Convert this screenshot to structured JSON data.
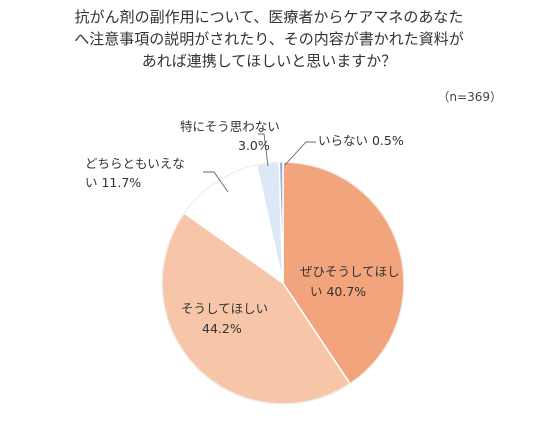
{
  "title_lines": [
    "抗がん剤の副作用について、医療者からケアマネのあなた",
    "へ注意事項の説明がされたり、その内容が書かれた資料が",
    "あれば連携してほしいと思いますか？"
  ],
  "sample_size": "（n=369）",
  "chart_data": {
    "type": "pie",
    "title": "抗がん剤の副作用について、医療者からケアマネのあなたへ注意事項の説明がされたり、その内容が書かれた資料があれば連携してほしいと思いますか？",
    "n": 369,
    "unit": "%",
    "slices": [
      {
        "label": "ぜひそうしてほしい",
        "value": 40.7,
        "color": "#F2A47C"
      },
      {
        "label": "そうしてほしい",
        "value": 44.2,
        "color": "#F7C6A9"
      },
      {
        "label": "どちらともいえない",
        "value": 11.7,
        "color": "#FFFFFF"
      },
      {
        "label": "特にそう思わない",
        "value": 3.0,
        "color": "#DCE8F5"
      },
      {
        "label": "いらない",
        "value": 0.5,
        "color": "#8FB1D9"
      }
    ],
    "slice_labels": [
      {
        "line1": "ぜひそうしてほし",
        "line2": "い 40.7%"
      },
      {
        "line1": "そうしてほしい",
        "line2": "44.2%"
      },
      {
        "line1": "どちらともいえな",
        "line2": "い 11.7%"
      },
      {
        "line1": "特にそう思わない",
        "line2": "3.0%"
      },
      {
        "line1": "いらない 0.5%",
        "line2": ""
      }
    ]
  }
}
